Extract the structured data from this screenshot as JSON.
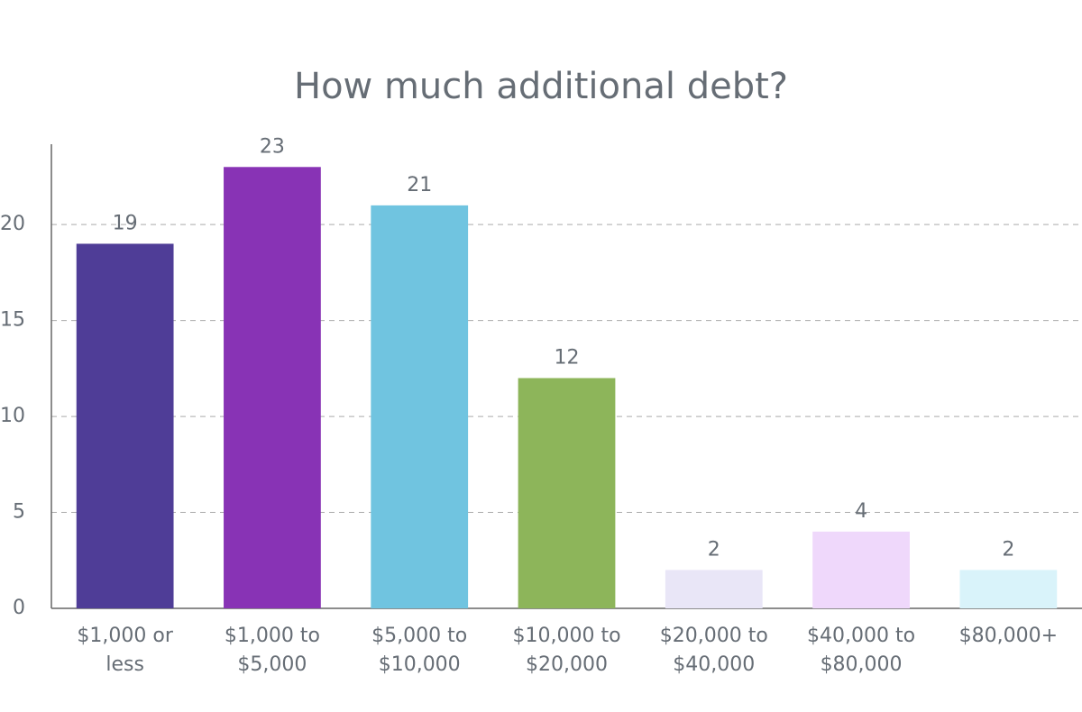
{
  "chart_data": {
    "type": "bar",
    "title": "How much additional debt?",
    "categories": [
      "$1,000 or less",
      "$1,000 to $5,000",
      "$5,000 to $10,000",
      "$10,000 to $20,000",
      "$20,000 to $40,000",
      "$40,000 to $80,000",
      "$80,000+"
    ],
    "values": [
      19,
      23,
      21,
      12,
      2,
      4,
      2
    ],
    "colors": [
      "#4f3d97",
      "#8833b5",
      "#70c4e0",
      "#8db55a",
      "#e9e6f7",
      "#efd8fb",
      "#d9f3fa"
    ],
    "ylim": [
      0,
      24
    ],
    "yticks": [
      0,
      5,
      10,
      15,
      20
    ],
    "grid": true
  }
}
